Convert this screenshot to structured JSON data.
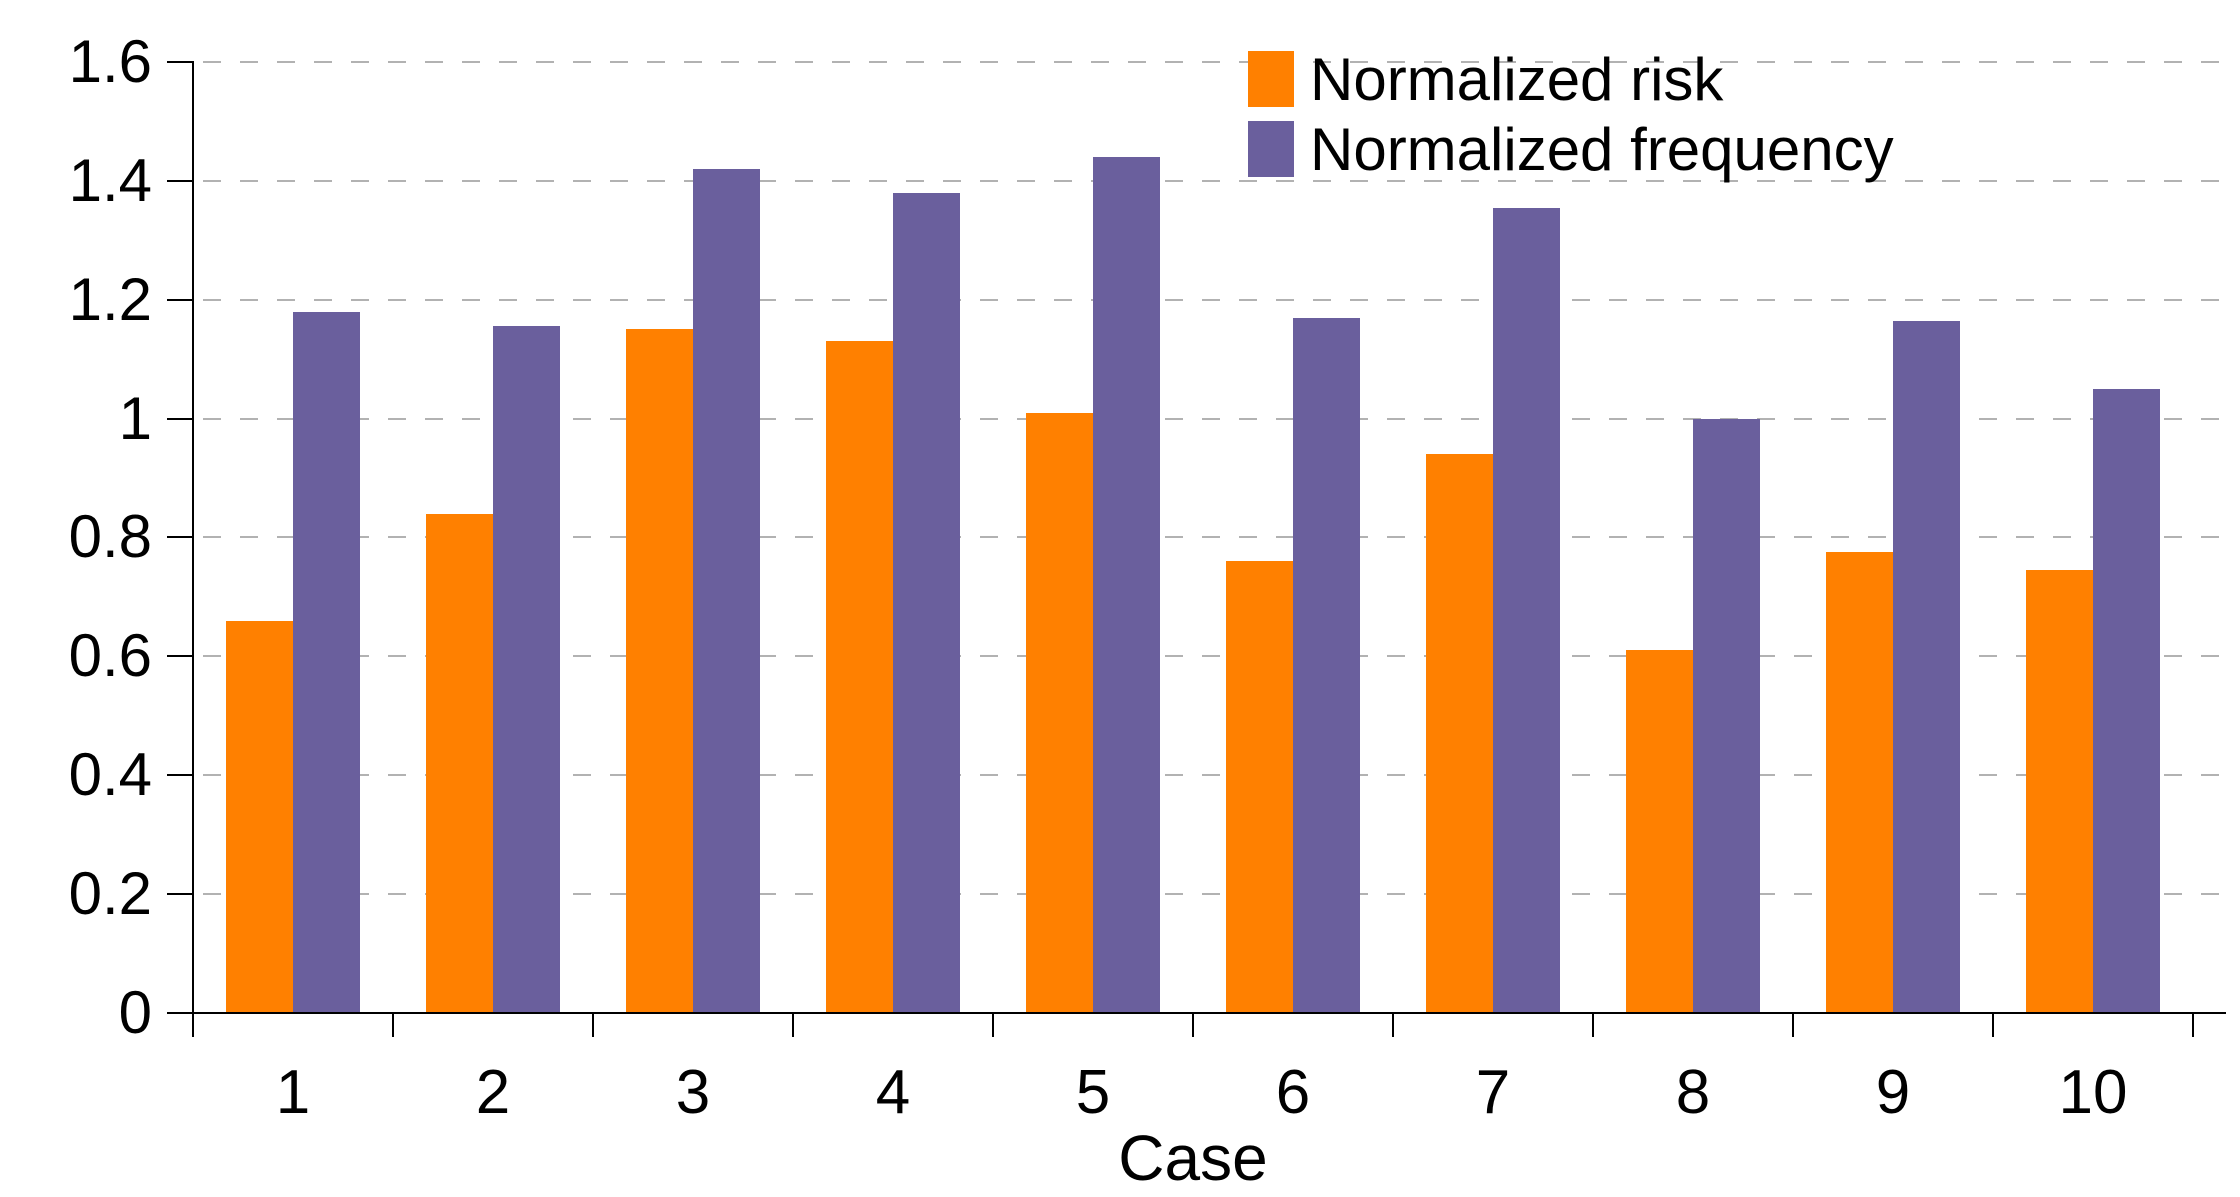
{
  "chart_data": {
    "type": "bar",
    "title": "",
    "xlabel": "Case",
    "ylabel": "",
    "categories": [
      "1",
      "2",
      "3",
      "4",
      "5",
      "6",
      "7",
      "8",
      "9",
      "10"
    ],
    "series": [
      {
        "name": "Normalized risk",
        "color": "#ff8000",
        "values": [
          0.66,
          0.84,
          1.15,
          1.13,
          1.01,
          0.76,
          0.94,
          0.61,
          0.775,
          0.745
        ]
      },
      {
        "name": "Normalized frequency",
        "color": "#6a5f9d",
        "values": [
          1.18,
          1.155,
          1.42,
          1.38,
          1.44,
          1.17,
          1.355,
          1.0,
          1.165,
          1.05
        ]
      }
    ],
    "ylim": [
      0,
      1.6
    ],
    "ytick_values": [
      0,
      0.2,
      0.4,
      0.6,
      0.8,
      1.0,
      1.2,
      1.4,
      1.6
    ],
    "ytick_labels": [
      "0",
      "0.2",
      "0.4",
      "0.6",
      "0.8",
      "1",
      "1.2",
      "1.4",
      "1.6"
    ],
    "grid": "horizontal-dashed",
    "legend_position": "top-right",
    "colors": {
      "grid": "#b2b2b2",
      "axis": "#000000",
      "text": "#000000",
      "background": "#ffffff"
    }
  }
}
